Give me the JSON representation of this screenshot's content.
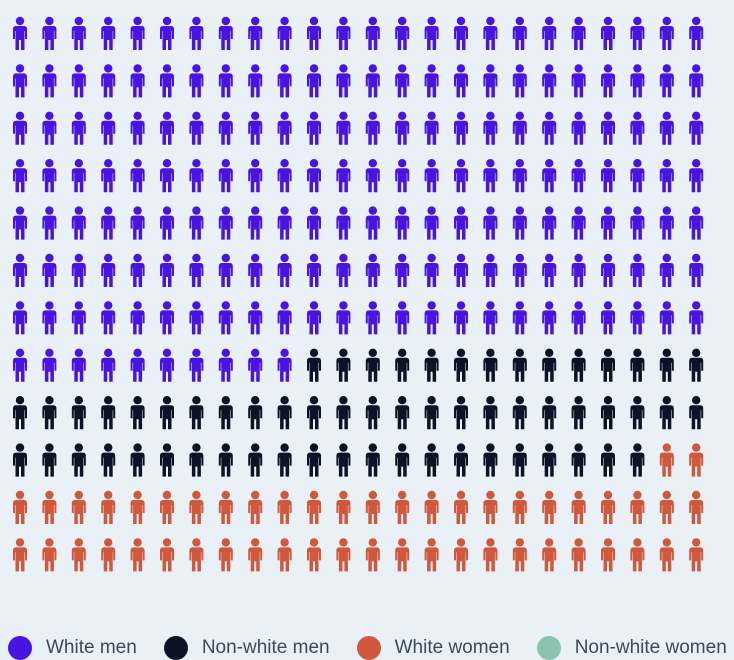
{
  "chart_data": {
    "type": "pictogram",
    "unit": "person-icon",
    "grid": {
      "columns": 24,
      "rows": 12
    },
    "total": 288,
    "series": [
      {
        "name": "White men",
        "value": 178,
        "color": "#4a14e0"
      },
      {
        "name": "Non-white men",
        "value": 60,
        "color": "#0d1326"
      },
      {
        "name": "White women",
        "value": 50,
        "color": "#d0583c"
      },
      {
        "name": "Non-white women",
        "value": 0,
        "color": "#8cc2b0"
      }
    ],
    "legend_position": "bottom"
  }
}
